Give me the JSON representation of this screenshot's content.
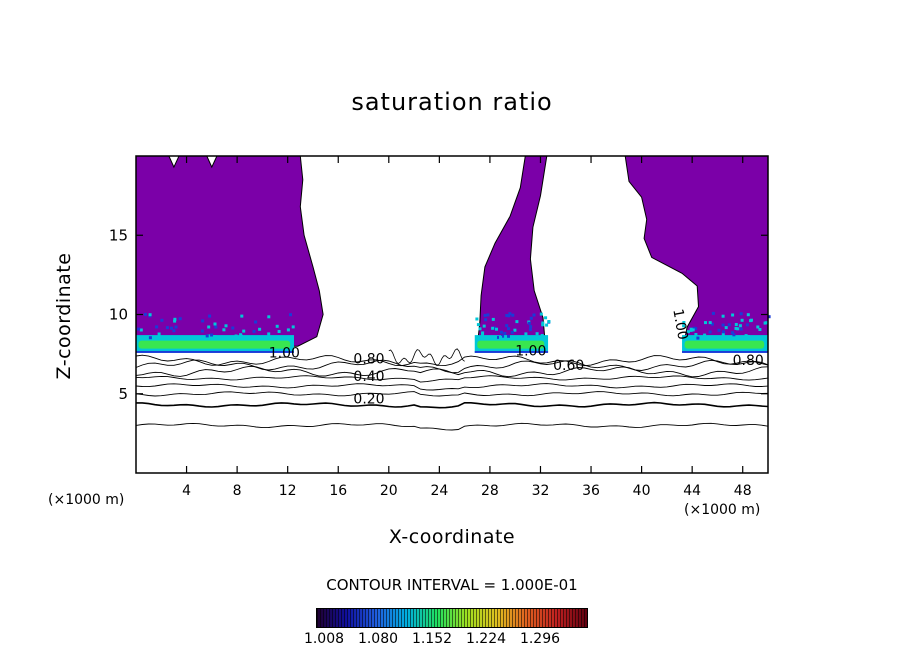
{
  "chart_data": {
    "type": "heatmap",
    "title": "saturation ratio",
    "xlabel": "X-coordinate",
    "ylabel": "Z-coordinate",
    "x_unit_label": "(×1000 m)",
    "xlim": [
      0,
      50
    ],
    "ylim": [
      0,
      20
    ],
    "x_ticks": [
      4,
      8,
      12,
      16,
      20,
      24,
      28,
      32,
      36,
      40,
      44,
      48
    ],
    "y_ticks": [
      5,
      10,
      15
    ],
    "contour_interval_label": "CONTOUR INTERVAL = 1.000E-01",
    "contour_labels": [
      {
        "text": "1.00",
        "x": 10.5,
        "z": 7.3
      },
      {
        "text": "0.80",
        "x": 17.2,
        "z": 6.9
      },
      {
        "text": "0.40",
        "x": 17.2,
        "z": 5.8
      },
      {
        "text": "0.20",
        "x": 17.2,
        "z": 4.4
      },
      {
        "text": "1.00",
        "x": 30.0,
        "z": 7.4
      },
      {
        "text": "0.60",
        "x": 33.0,
        "z": 6.5
      },
      {
        "text": "0.80",
        "x": 47.2,
        "z": 6.8
      },
      {
        "text": "1.00",
        "x": 42.5,
        "z": 10.3
      }
    ],
    "contour_levels_z": [
      3.0,
      4.3,
      5.0,
      5.5,
      6.0,
      6.4,
      6.8,
      7.1
    ],
    "colorbar": {
      "ticks": [
        "1.008",
        "1.080",
        "1.152",
        "1.224",
        "1.296"
      ],
      "range": [
        1.0,
        1.3
      ]
    },
    "colors": {
      "saturated": "#7b00a8",
      "band_green": "#39e650",
      "band_cyan": "#00c8d8",
      "band_blue": "#1a3cd8"
    }
  }
}
